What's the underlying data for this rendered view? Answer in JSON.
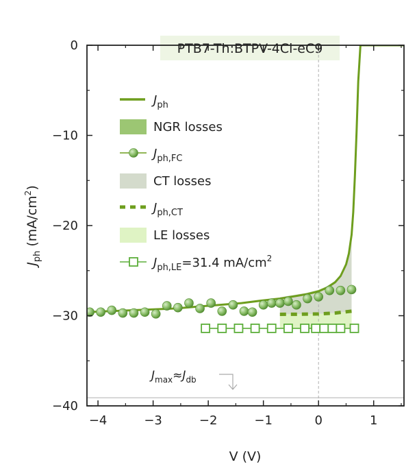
{
  "chart_data": {
    "type": "line",
    "title": "PTB7-Th:BTPV-4Cl-eC9",
    "xlabel": "V (V)",
    "ylabel": {
      "base": "J",
      "sub": "ph",
      "rest": " (mA/cm",
      "sup": "2",
      "close": ")"
    },
    "xlim": [
      -4.2,
      1.55
    ],
    "ylim": [
      -40,
      0
    ],
    "x_ticks": [
      -4,
      -3,
      -2,
      -1,
      0,
      1
    ],
    "y_ticks": [
      0,
      -10,
      -20,
      -30,
      -40
    ],
    "x_tick_labels": [
      "−4",
      "−3",
      "−2",
      "−1",
      "0",
      "1"
    ],
    "y_tick_labels": [
      "0",
      "−10",
      "−20",
      "−30",
      "−40"
    ],
    "grid": false,
    "legend_position": "upper-left",
    "legend": [
      {
        "key": "jph",
        "base": "J",
        "sub": "ph",
        "suffix": ""
      },
      {
        "key": "ngr",
        "text": "NGR losses"
      },
      {
        "key": "jph_fc",
        "base": "J",
        "sub": "ph,FC",
        "suffix": ""
      },
      {
        "key": "ct",
        "text": "CT losses"
      },
      {
        "key": "jph_ct",
        "base": "J",
        "sub": "ph,CT",
        "suffix": ""
      },
      {
        "key": "le",
        "text": "LE losses"
      },
      {
        "key": "jph_le",
        "base": "J",
        "sub": "ph,LE",
        "suffix": "=31.4 mA/cm",
        "sup": "2"
      }
    ],
    "annotation": {
      "base1": "J",
      "sub1": "max",
      "mid": "≈",
      "base2": "J",
      "sub2": "db"
    },
    "reference_lines": {
      "jmax_y": -39.1,
      "zero_bias_x": 0
    },
    "series": [
      {
        "name": "Jph",
        "style": "solid-line",
        "x": [
          -4.2,
          -3.8,
          -3.4,
          -3.0,
          -2.6,
          -2.2,
          -1.8,
          -1.4,
          -1.0,
          -0.7,
          -0.4,
          -0.2,
          0.0,
          0.15,
          0.3,
          0.4,
          0.5,
          0.55,
          0.6,
          0.63,
          0.66,
          0.69,
          0.72,
          0.76
        ],
        "y": [
          -29.6,
          -29.5,
          -29.4,
          -29.3,
          -29.2,
          -29.0,
          -28.8,
          -28.6,
          -28.3,
          -28.1,
          -27.8,
          -27.6,
          -27.3,
          -26.9,
          -26.3,
          -25.6,
          -24.3,
          -23.1,
          -21.0,
          -18.5,
          -14.5,
          -9.5,
          -4.0,
          0.0
        ]
      },
      {
        "name": "Jph,FC",
        "style": "spheres",
        "x": [
          -4.15,
          -3.95,
          -3.75,
          -3.55,
          -3.35,
          -3.15,
          -2.95,
          -2.75,
          -2.55,
          -2.35,
          -2.15,
          -1.95,
          -1.75,
          -1.55,
          -1.35,
          -1.2,
          -1.0,
          -0.85,
          -0.7,
          -0.55,
          -0.4,
          -0.2,
          0.0,
          0.2,
          0.4,
          0.6
        ],
        "y": [
          -29.6,
          -29.6,
          -29.4,
          -29.7,
          -29.7,
          -29.6,
          -29.8,
          -28.9,
          -29.1,
          -28.6,
          -29.2,
          -28.6,
          -29.5,
          -28.8,
          -29.5,
          -29.6,
          -28.8,
          -28.6,
          -28.6,
          -28.4,
          -28.8,
          -28.1,
          -27.9,
          -27.2,
          -27.2,
          -27.1
        ]
      },
      {
        "name": "Jph,CT",
        "style": "dashed-line",
        "x": [
          -0.7,
          -0.35,
          0.0,
          0.3,
          0.6
        ],
        "y": [
          -29.85,
          -29.83,
          -29.8,
          -29.7,
          -29.5
        ]
      },
      {
        "name": "Jph,LE",
        "value": -31.4,
        "style": "open-squares",
        "x": [
          -2.05,
          -1.75,
          -1.45,
          -1.15,
          -0.85,
          -0.55,
          -0.25,
          -0.05,
          0.1,
          0.25,
          0.4,
          0.65
        ],
        "y": [
          -31.4,
          -31.4,
          -31.4,
          -31.4,
          -31.4,
          -31.4,
          -31.4,
          -31.4,
          -31.4,
          -31.4,
          -31.4,
          -31.4
        ]
      }
    ]
  },
  "colors": {
    "line": "#6e9e1e",
    "sphere": "#8cbf6a",
    "sphere_dark": "#4f8a2e",
    "ngr_fill": "#9cc673",
    "ct_fill": "#d4dbcc",
    "le_fill": "#dff3c4",
    "title_bg": "#eef5e4",
    "square": "#5cae3a"
  }
}
